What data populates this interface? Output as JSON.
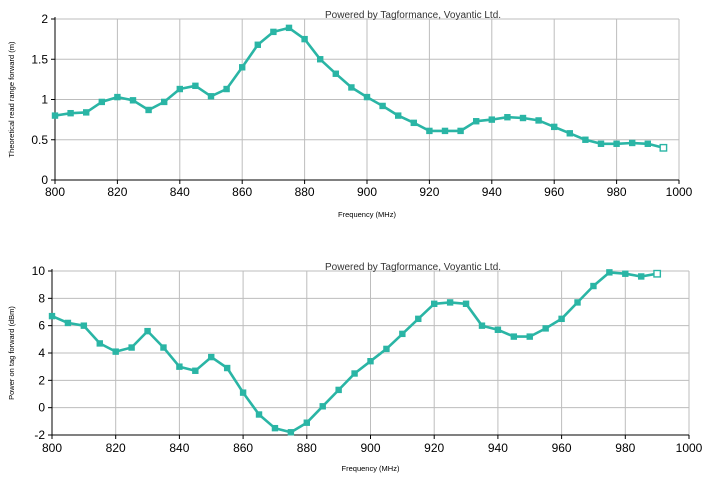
{
  "chart_data": [
    {
      "type": "line",
      "watermark": "Powered by Tagformance, Voyantic Ltd.",
      "xlabel": "Frequency (MHz)",
      "ylabel": "Theoretical read range forward (m)",
      "xlim": [
        800,
        1000
      ],
      "ylim": [
        0,
        2
      ],
      "xticks": [
        800,
        820,
        840,
        860,
        880,
        900,
        920,
        940,
        960,
        980,
        1000
      ],
      "yticks": [
        0,
        0.5,
        1,
        1.5,
        2
      ],
      "ytick_labels": [
        "0",
        "0.5",
        "1",
        "1.5",
        "2"
      ],
      "grid": true,
      "line_color": "#2ab5a5",
      "series": [
        {
          "x": [
            800,
            805,
            810,
            815,
            820,
            825,
            830,
            835,
            840,
            845,
            850,
            855,
            860,
            865,
            870,
            875,
            880,
            885,
            890,
            895,
            900,
            905,
            910,
            915,
            920,
            925,
            930,
            935,
            940,
            945,
            950,
            955,
            960,
            965,
            970,
            975,
            980,
            985,
            990,
            995
          ],
          "values": [
            0.8,
            0.83,
            0.84,
            0.97,
            1.03,
            0.99,
            0.87,
            0.97,
            1.13,
            1.17,
            1.04,
            1.13,
            1.4,
            1.68,
            1.84,
            1.89,
            1.75,
            1.5,
            1.32,
            1.15,
            1.03,
            0.92,
            0.8,
            0.71,
            0.61,
            0.61,
            0.61,
            0.73,
            0.75,
            0.78,
            0.77,
            0.74,
            0.66,
            0.58,
            0.5,
            0.45,
            0.45,
            0.46,
            0.45,
            0.4
          ]
        }
      ]
    },
    {
      "type": "line",
      "watermark": "Powered by Tagformance, Voyantic Ltd.",
      "xlabel": "Frequency (MHz)",
      "ylabel": "Power on tag forward (dBm)",
      "xlim": [
        800,
        1000
      ],
      "ylim": [
        -2,
        10
      ],
      "xticks": [
        800,
        820,
        840,
        860,
        880,
        900,
        920,
        940,
        960,
        980,
        1000
      ],
      "yticks": [
        -2,
        0,
        2,
        4,
        6,
        8,
        10
      ],
      "ytick_labels": [
        "-2",
        "0",
        "2",
        "4",
        "6",
        "8",
        "10"
      ],
      "grid": true,
      "line_color": "#2ab5a5",
      "series": [
        {
          "x": [
            800,
            805,
            810,
            815,
            820,
            825,
            830,
            835,
            840,
            845,
            850,
            855,
            860,
            865,
            870,
            875,
            880,
            885,
            890,
            895,
            900,
            905,
            910,
            915,
            920,
            925,
            930,
            935,
            940,
            945,
            950,
            955,
            960,
            965,
            970,
            975,
            980,
            985,
            990
          ],
          "values": [
            6.7,
            6.2,
            6.0,
            4.7,
            4.1,
            4.4,
            5.6,
            4.4,
            3.0,
            2.7,
            3.7,
            2.9,
            1.1,
            -0.5,
            -1.5,
            -1.8,
            -1.1,
            0.1,
            1.3,
            2.5,
            3.4,
            4.3,
            5.4,
            6.5,
            7.6,
            7.7,
            7.6,
            6.0,
            5.7,
            5.2,
            5.2,
            5.8,
            6.5,
            7.7,
            8.9,
            9.9,
            9.8,
            9.6,
            9.8
          ]
        }
      ]
    }
  ]
}
